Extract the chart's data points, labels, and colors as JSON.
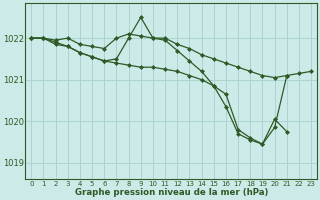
{
  "title": "Graphe pression niveau de la mer (hPa)",
  "bg_color": "#cceae7",
  "grid_color": "#aad4d0",
  "line_color": "#2d5a27",
  "marker_color": "#2d5a27",
  "xlim": [
    -0.5,
    23.5
  ],
  "ylim": [
    1018.6,
    1022.85
  ],
  "yticks": [
    1019,
    1020,
    1021,
    1022
  ],
  "xticks": [
    0,
    1,
    2,
    3,
    4,
    5,
    6,
    7,
    8,
    9,
    10,
    11,
    12,
    13,
    14,
    15,
    16,
    17,
    18,
    19,
    20,
    21,
    22,
    23
  ],
  "series": [
    {
      "x": [
        0,
        1,
        2,
        3,
        4,
        5,
        6,
        7,
        8,
        9,
        10,
        11,
        12,
        13,
        14,
        15,
        16,
        17,
        18,
        19,
        20,
        21,
        22,
        23
      ],
      "y": [
        1022.0,
        1022.0,
        1021.95,
        1022.0,
        1021.85,
        1021.8,
        1021.75,
        1022.0,
        1022.1,
        1022.05,
        1022.0,
        1022.0,
        1021.85,
        1021.75,
        1021.6,
        1021.5,
        1021.4,
        1021.3,
        1021.2,
        1021.1,
        1021.05,
        1021.1,
        1021.15,
        1021.2
      ]
    },
    {
      "x": [
        0,
        1,
        2,
        3,
        4,
        5,
        6,
        7,
        8,
        9,
        10,
        11,
        12,
        13,
        14,
        15,
        16,
        17,
        18,
        19,
        20,
        21
      ],
      "y": [
        1022.0,
        1022.0,
        1021.85,
        1021.8,
        1021.65,
        1021.55,
        1021.45,
        1021.5,
        1022.0,
        1022.5,
        1022.0,
        1021.95,
        1021.7,
        1021.45,
        1021.2,
        1020.85,
        1020.35,
        1019.7,
        1019.55,
        1019.45,
        1019.85,
        1021.1
      ]
    },
    {
      "x": [
        0,
        1,
        2,
        3,
        4,
        5,
        6,
        7,
        8,
        9,
        10,
        11,
        12,
        13,
        14,
        15,
        16,
        17,
        18,
        19,
        20,
        21,
        22,
        23
      ],
      "y": [
        1022.0,
        1022.0,
        1021.9,
        1021.8,
        1021.65,
        1021.55,
        1021.45,
        1021.4,
        1021.35,
        1021.3,
        1021.3,
        1021.25,
        1021.2,
        1021.1,
        1021.0,
        1020.85,
        1020.65,
        1019.8,
        1019.6,
        1019.45,
        1020.05,
        1019.75,
        null,
        null
      ]
    }
  ]
}
